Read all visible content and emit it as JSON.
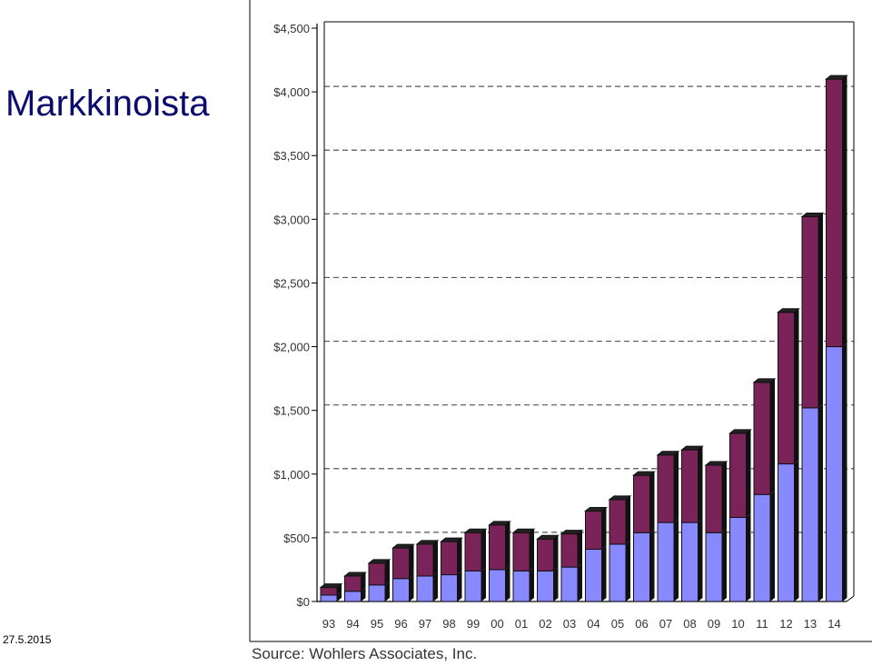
{
  "slide": {
    "title": "Markkinoista",
    "date": "27.5.2015"
  },
  "source": "Source: Wohlers Associates, Inc.",
  "chart_data": {
    "type": "bar",
    "stacked": true,
    "categories": [
      "93",
      "94",
      "95",
      "96",
      "97",
      "98",
      "99",
      "00",
      "01",
      "02",
      "03",
      "04",
      "05",
      "06",
      "07",
      "08",
      "09",
      "10",
      "11",
      "12",
      "13",
      "14"
    ],
    "series": [
      {
        "color": "#8888ff",
        "values": [
          50,
          80,
          130,
          180,
          200,
          210,
          240,
          250,
          240,
          240,
          270,
          410,
          450,
          540,
          620,
          620,
          540,
          660,
          840,
          1080,
          1520,
          2000
        ]
      },
      {
        "color": "#7a2358",
        "values": [
          60,
          120,
          170,
          240,
          250,
          260,
          300,
          350,
          300,
          250,
          260,
          300,
          350,
          450,
          530,
          570,
          530,
          660,
          880,
          1190,
          1500,
          2100
        ]
      }
    ],
    "yticks": [
      "$0",
      "$500",
      "$1,000",
      "$1,500",
      "$2,000",
      "$2,500",
      "$3,000",
      "$3,500",
      "$4,000",
      "$4,500"
    ],
    "ylim": [
      0,
      4500
    ],
    "grid": true,
    "title": "",
    "xlabel": "",
    "ylabel": ""
  }
}
